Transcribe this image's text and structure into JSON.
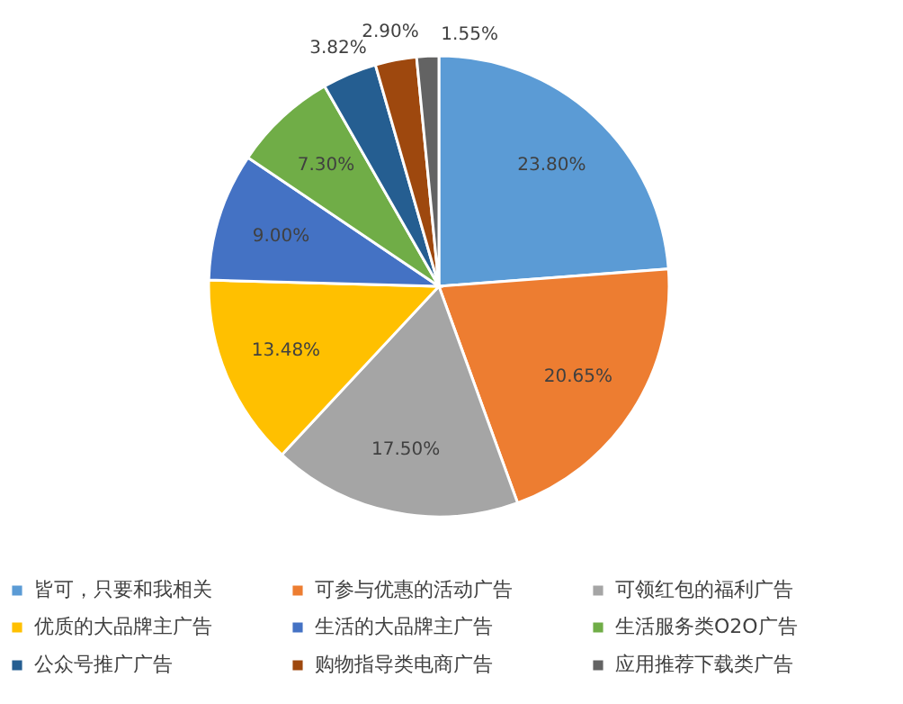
{
  "chart_data": {
    "type": "pie",
    "categories": [
      "皆可，只要和我相关",
      "可参与优惠的活动广告",
      "可领红包的福利广告",
      "优质的大品牌主广告",
      "生活的大品牌主广告",
      "生活服务类O2O广告",
      "公众号推广广告",
      "购物指导类电商广告",
      "应用推荐下载类广告"
    ],
    "values": [
      23.8,
      20.65,
      17.5,
      13.48,
      9.0,
      7.3,
      3.82,
      2.9,
      1.55
    ],
    "value_labels": [
      "23.80%",
      "20.65%",
      "17.50%",
      "13.48%",
      "9.00%",
      "7.30%",
      "3.82%",
      "2.90%",
      "1.55%"
    ],
    "colors": [
      "#5b9bd5",
      "#ed7d31",
      "#a5a5a5",
      "#ffc000",
      "#4472c4",
      "#70ad47",
      "#255e91",
      "#9e480e",
      "#636363"
    ],
    "legend": "bottom"
  }
}
